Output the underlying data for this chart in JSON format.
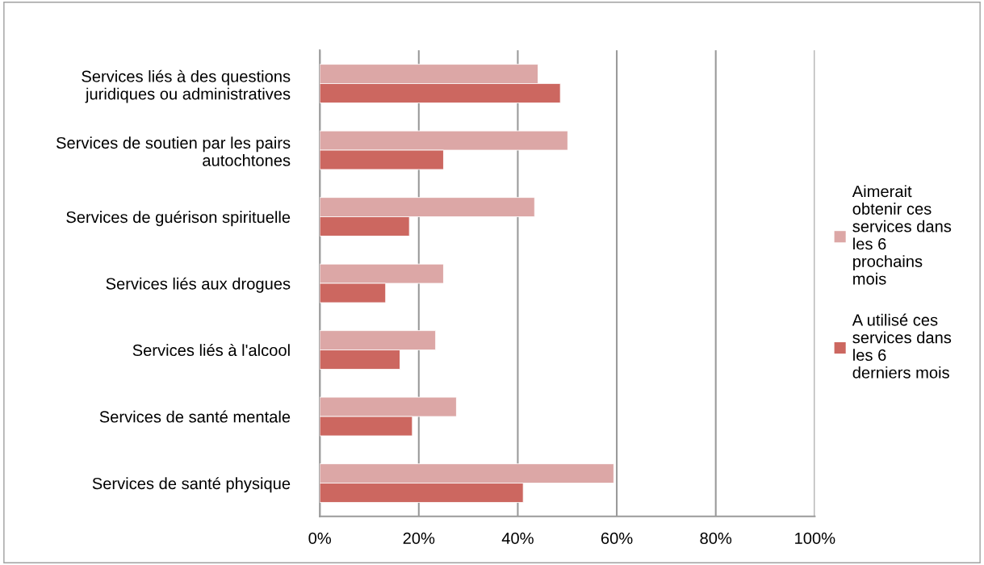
{
  "chart_data": {
    "type": "bar",
    "orientation": "horizontal",
    "categories": [
      "Services liés à des questions juridiques ou administratives",
      "Services de soutien par les pairs autochtones",
      "Services de guérison spirituelle",
      "Services liés aux drogues",
      "Services liés à l'alcool",
      "Services de santé mentale",
      "Services de santé physique"
    ],
    "series": [
      {
        "name": "Aimerait obtenir ces services dans les 6 prochains mois",
        "color": "#dca7a6",
        "values": [
          44.1,
          50.1,
          43.4,
          25.0,
          23.4,
          27.6,
          59.4
        ]
      },
      {
        "name": "A utilisé ces services dans les 6 derniers mois",
        "color": "#cc6760",
        "values": [
          48.6,
          25.0,
          18.1,
          13.3,
          16.2,
          18.7,
          41.1
        ]
      }
    ],
    "xlim": [
      0,
      100
    ],
    "xticks": [
      {
        "value": 0,
        "label": "0%"
      },
      {
        "value": 20,
        "label": "20%"
      },
      {
        "value": 40,
        "label": "40%"
      },
      {
        "value": 60,
        "label": "60%"
      },
      {
        "value": 80,
        "label": "80%"
      },
      {
        "value": 100,
        "label": "100%"
      }
    ],
    "grid": "x",
    "legend": "right"
  }
}
